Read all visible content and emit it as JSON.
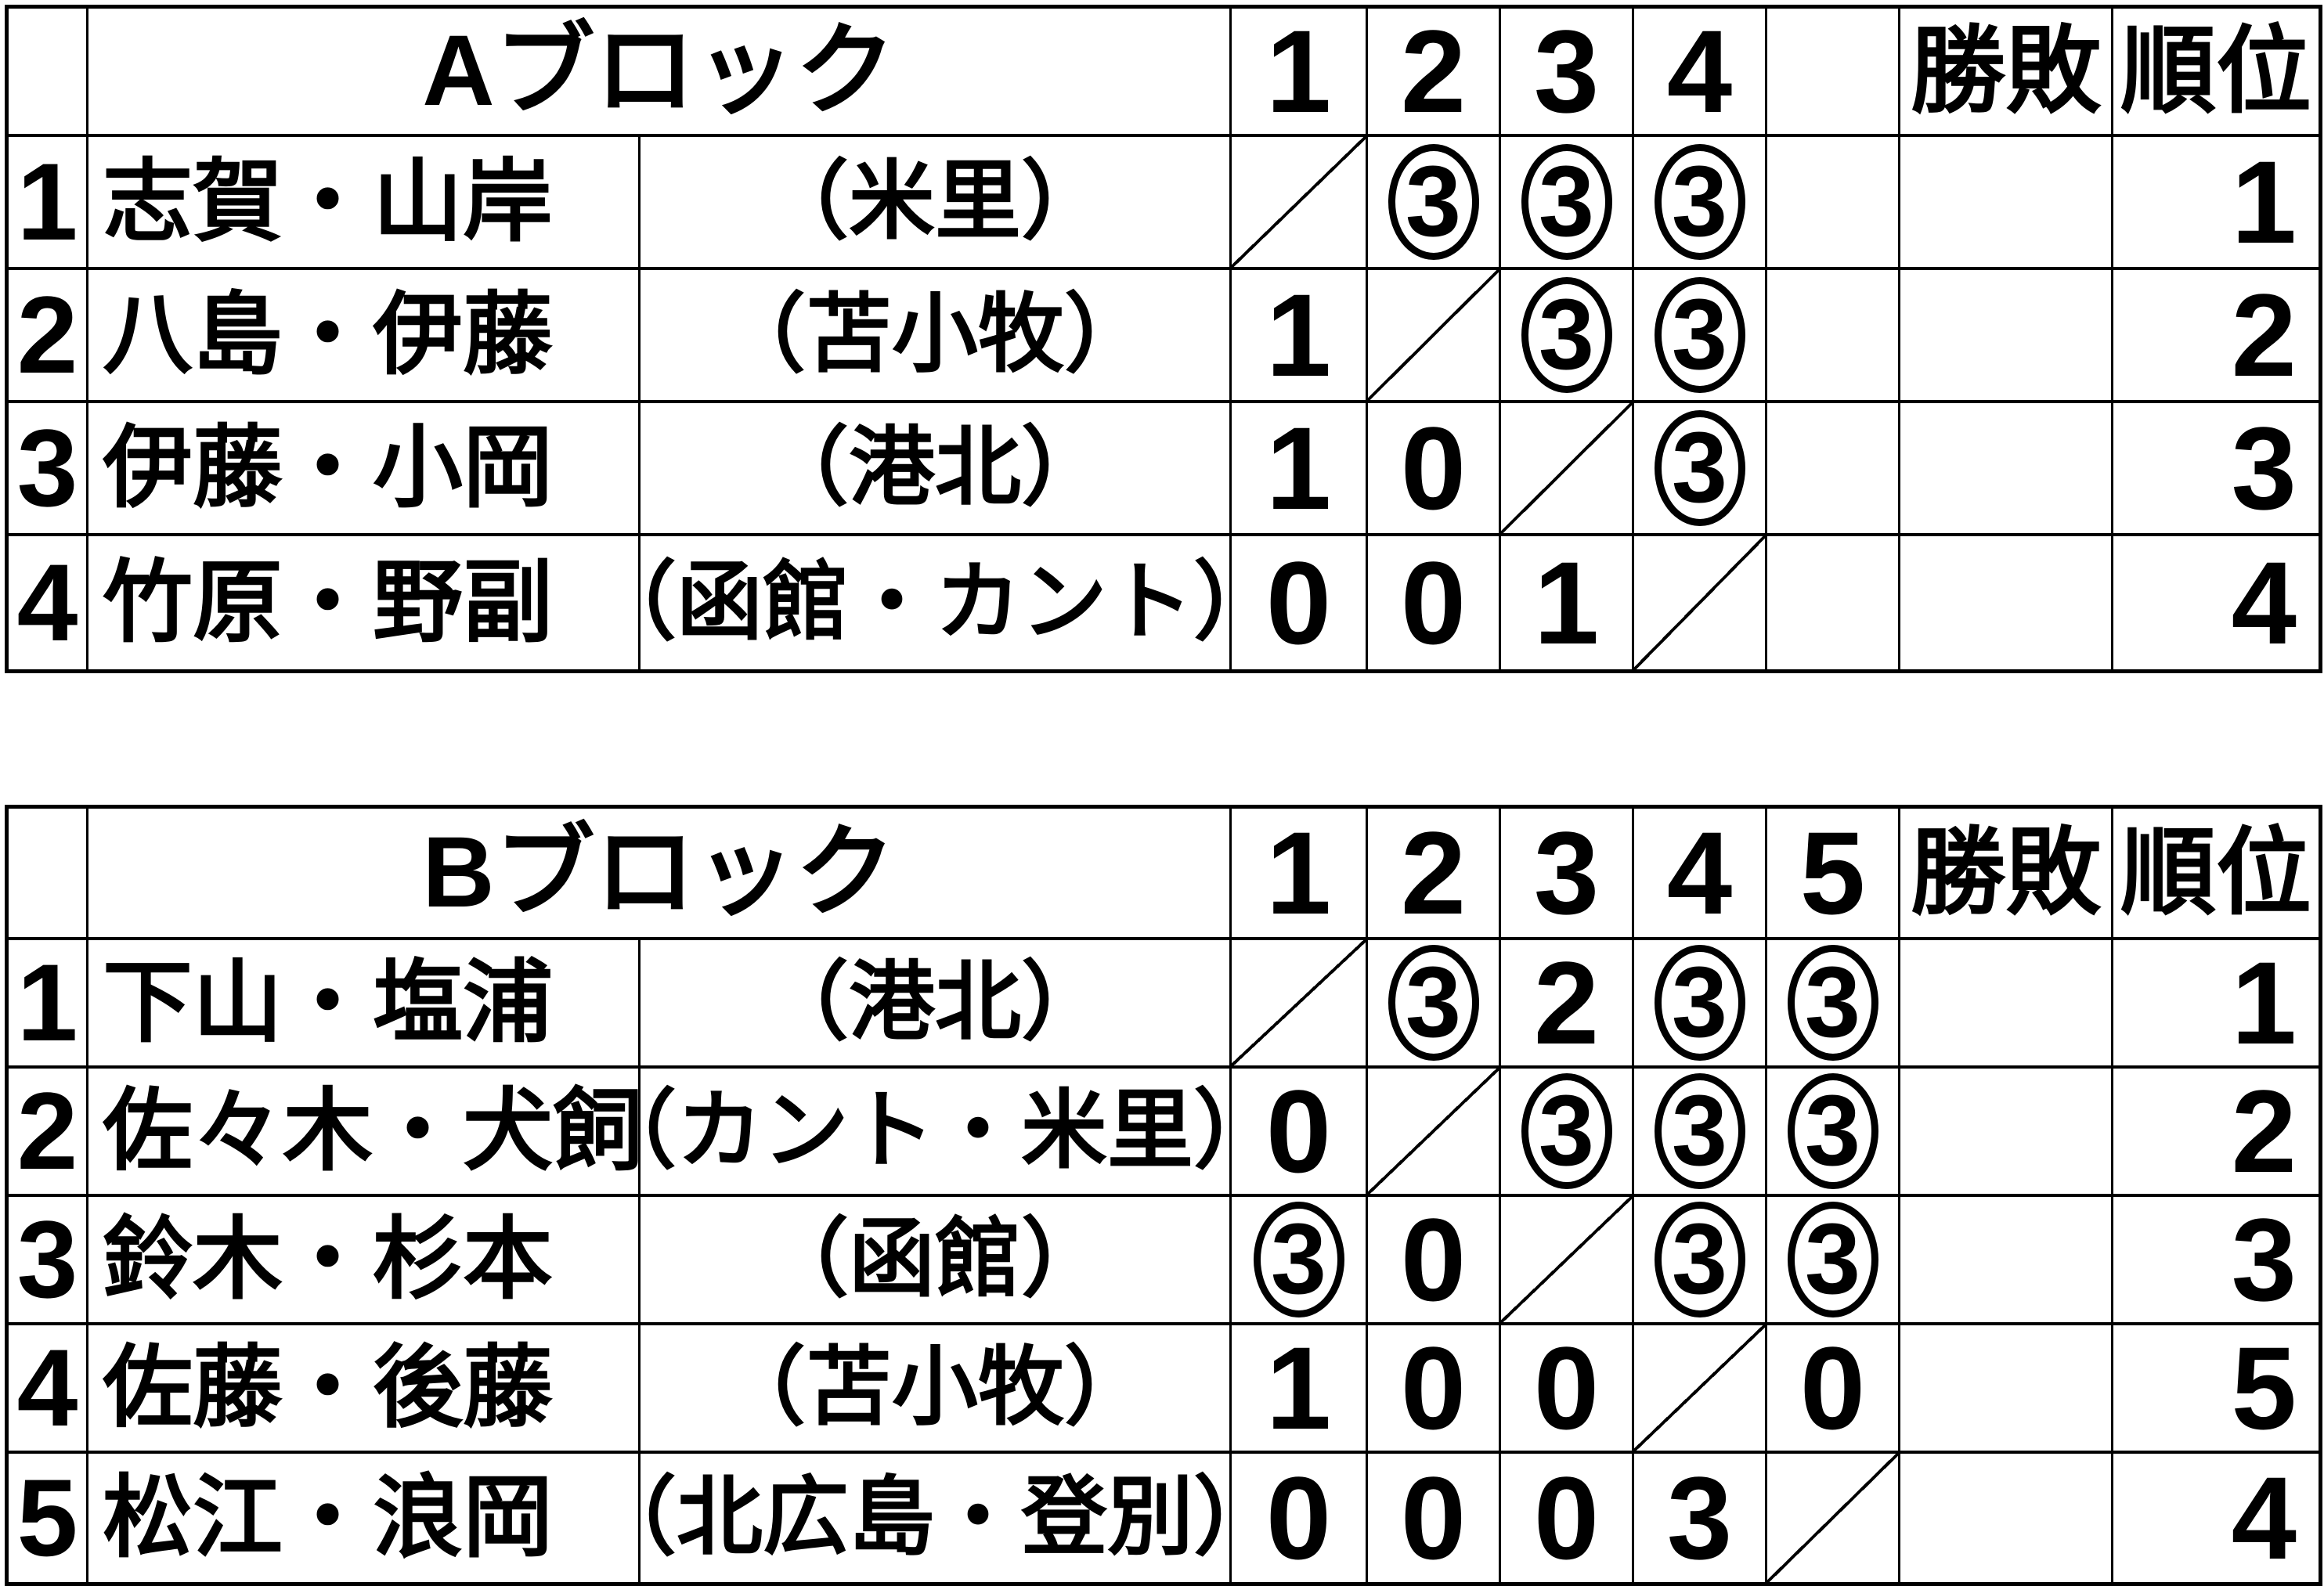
{
  "page": {
    "background": "#ffffff",
    "line_color": "#000000"
  },
  "blocks": [
    {
      "title": "Aブロック",
      "game_columns": [
        "1",
        "2",
        "3",
        "4",
        ""
      ],
      "wl_header": "勝敗",
      "rank_header": "順位",
      "rows": [
        {
          "no": "1",
          "name": "志賀・山岸",
          "club": "（米里）",
          "results": [
            {
              "self": true
            },
            {
              "score": "3",
              "circled": true
            },
            {
              "score": "3",
              "circled": true
            },
            {
              "score": "3",
              "circled": true
            },
            {
              "score": ""
            }
          ],
          "wl": "",
          "rank": "1"
        },
        {
          "no": "2",
          "name": "八島・伊藤",
          "club": "（苫小牧）",
          "results": [
            {
              "score": "1"
            },
            {
              "self": true
            },
            {
              "score": "3",
              "circled": true
            },
            {
              "score": "3",
              "circled": true
            },
            {
              "score": ""
            }
          ],
          "wl": "",
          "rank": "2"
        },
        {
          "no": "3",
          "name": "伊藤・小岡",
          "club": "（港北）",
          "results": [
            {
              "score": "1"
            },
            {
              "score": "0"
            },
            {
              "self": true
            },
            {
              "score": "3",
              "circled": true
            },
            {
              "score": ""
            }
          ],
          "wl": "",
          "rank": "3"
        },
        {
          "no": "4",
          "name": "竹原・野副",
          "club": "（函館・カント）",
          "results": [
            {
              "score": "0"
            },
            {
              "score": "0"
            },
            {
              "score": "1"
            },
            {
              "self": true
            },
            {
              "score": ""
            }
          ],
          "wl": "",
          "rank": "4"
        }
      ]
    },
    {
      "title": "Bブロック",
      "game_columns": [
        "1",
        "2",
        "3",
        "4",
        "5"
      ],
      "wl_header": "勝敗",
      "rank_header": "順位",
      "rows": [
        {
          "no": "1",
          "name": "下山・塩浦",
          "club": "（港北）",
          "results": [
            {
              "self": true
            },
            {
              "score": "3",
              "circled": true
            },
            {
              "score": "2"
            },
            {
              "score": "3",
              "circled": true
            },
            {
              "score": "3",
              "circled": true
            }
          ],
          "wl": "",
          "rank": "1"
        },
        {
          "no": "2",
          "name": "佐々木・犬飼",
          "club": "（カント・米里）",
          "results": [
            {
              "score": "0"
            },
            {
              "self": true
            },
            {
              "score": "3",
              "circled": true
            },
            {
              "score": "3",
              "circled": true
            },
            {
              "score": "3",
              "circled": true
            }
          ],
          "wl": "",
          "rank": "2"
        },
        {
          "no": "3",
          "name": "鈴木・杉本",
          "club": "（函館）",
          "results": [
            {
              "score": "3",
              "circled": true
            },
            {
              "score": "0"
            },
            {
              "self": true
            },
            {
              "score": "3",
              "circled": true
            },
            {
              "score": "3",
              "circled": true
            }
          ],
          "wl": "",
          "rank": "3"
        },
        {
          "no": "4",
          "name": "佐藤・後藤",
          "club": "（苫小牧）",
          "results": [
            {
              "score": "1"
            },
            {
              "score": "0"
            },
            {
              "score": "0"
            },
            {
              "self": true
            },
            {
              "score": "0"
            }
          ],
          "wl": "",
          "rank": "5"
        },
        {
          "no": "5",
          "name": "松江・浪岡",
          "club": "（北広島・登別）",
          "results": [
            {
              "score": "0"
            },
            {
              "score": "0"
            },
            {
              "score": "0"
            },
            {
              "score": "3"
            },
            {
              "self": true
            }
          ],
          "wl": "",
          "rank": "4"
        }
      ]
    }
  ]
}
